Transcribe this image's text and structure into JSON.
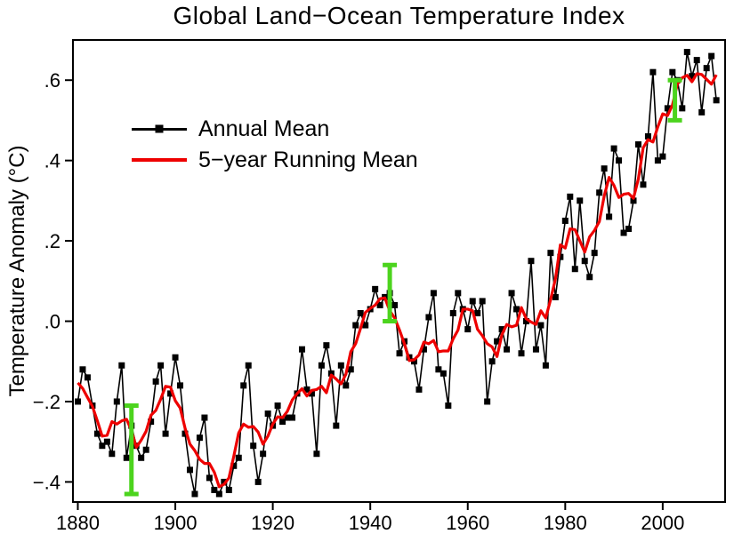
{
  "chart_data": {
    "type": "line",
    "title": "Global Land−Ocean Temperature Index",
    "xlabel": "",
    "ylabel": "Temperature Anomaly (°C)",
    "xlim": [
      1879,
      2012.8
    ],
    "ylim": [
      -0.45,
      0.7
    ],
    "grid": false,
    "legend_position": "upper-left-inside",
    "x_ticks": [
      {
        "value": 1880,
        "label": "1880"
      },
      {
        "value": 1900,
        "label": "1900"
      },
      {
        "value": 1920,
        "label": "1920"
      },
      {
        "value": 1940,
        "label": "1940"
      },
      {
        "value": 1960,
        "label": "1960"
      },
      {
        "value": 1980,
        "label": "1980"
      },
      {
        "value": 2000,
        "label": "2000"
      }
    ],
    "y_ticks": [
      {
        "value": -0.4,
        "label": "−.4"
      },
      {
        "value": -0.2,
        "label": "−.2"
      },
      {
        "value": 0.0,
        "label": ".0"
      },
      {
        "value": 0.2,
        "label": ".2"
      },
      {
        "value": 0.4,
        "label": ".4"
      },
      {
        "value": 0.6,
        "label": ".6"
      }
    ],
    "legend": [
      {
        "label": "Annual Mean",
        "color": "#000000",
        "marker": "square"
      },
      {
        "label": "5−year Running Mean",
        "color": "#ee0000",
        "marker": "none"
      }
    ],
    "colors": {
      "annual_mean": "#000000",
      "running_mean": "#ee0000",
      "uncertainty": "#4cd41e",
      "background": "#ffffff"
    },
    "series": {
      "annual": {
        "name": "Annual Mean",
        "years": [
          1880,
          1881,
          1882,
          1883,
          1884,
          1885,
          1886,
          1887,
          1888,
          1889,
          1890,
          1891,
          1892,
          1893,
          1894,
          1895,
          1896,
          1897,
          1898,
          1899,
          1900,
          1901,
          1902,
          1903,
          1904,
          1905,
          1906,
          1907,
          1908,
          1909,
          1910,
          1911,
          1912,
          1913,
          1914,
          1915,
          1916,
          1917,
          1918,
          1919,
          1920,
          1921,
          1922,
          1923,
          1924,
          1925,
          1926,
          1927,
          1928,
          1929,
          1930,
          1931,
          1932,
          1933,
          1934,
          1935,
          1936,
          1937,
          1938,
          1939,
          1940,
          1941,
          1942,
          1943,
          1944,
          1945,
          1946,
          1947,
          1948,
          1949,
          1950,
          1951,
          1952,
          1953,
          1954,
          1955,
          1956,
          1957,
          1958,
          1959,
          1960,
          1961,
          1962,
          1963,
          1964,
          1965,
          1966,
          1967,
          1968,
          1969,
          1970,
          1971,
          1972,
          1973,
          1974,
          1975,
          1976,
          1977,
          1978,
          1979,
          1980,
          1981,
          1982,
          1983,
          1984,
          1985,
          1986,
          1987,
          1988,
          1989,
          1990,
          1991,
          1992,
          1993,
          1994,
          1995,
          1996,
          1997,
          1998,
          1999,
          2000,
          2001,
          2002,
          2003,
          2004,
          2005,
          2006,
          2007,
          2008,
          2009,
          2010,
          2011
        ],
        "values": [
          -0.2,
          -0.12,
          -0.14,
          -0.21,
          -0.28,
          -0.31,
          -0.3,
          -0.33,
          -0.2,
          -0.11,
          -0.34,
          -0.26,
          -0.31,
          -0.34,
          -0.32,
          -0.25,
          -0.15,
          -0.11,
          -0.28,
          -0.18,
          -0.09,
          -0.16,
          -0.28,
          -0.37,
          -0.43,
          -0.29,
          -0.24,
          -0.39,
          -0.42,
          -0.43,
          -0.4,
          -0.42,
          -0.36,
          -0.34,
          -0.16,
          -0.11,
          -0.31,
          -0.4,
          -0.33,
          -0.23,
          -0.26,
          -0.21,
          -0.25,
          -0.24,
          -0.24,
          -0.18,
          -0.07,
          -0.17,
          -0.18,
          -0.33,
          -0.11,
          -0.06,
          -0.13,
          -0.26,
          -0.11,
          -0.16,
          -0.12,
          -0.01,
          0.02,
          -0.01,
          0.03,
          0.08,
          0.04,
          0.06,
          0.07,
          0.04,
          -0.08,
          -0.05,
          -0.09,
          -0.1,
          -0.17,
          -0.07,
          0.01,
          0.07,
          -0.12,
          -0.13,
          -0.21,
          0.02,
          0.07,
          0.03,
          -0.02,
          0.05,
          0.02,
          0.05,
          -0.2,
          -0.1,
          -0.05,
          -0.02,
          -0.07,
          0.07,
          0.03,
          -0.08,
          0.0,
          0.15,
          -0.07,
          -0.01,
          -0.11,
          0.17,
          0.06,
          0.16,
          0.25,
          0.31,
          0.13,
          0.3,
          0.15,
          0.11,
          0.17,
          0.32,
          0.38,
          0.26,
          0.43,
          0.4,
          0.22,
          0.23,
          0.3,
          0.44,
          0.34,
          0.46,
          0.62,
          0.4,
          0.41,
          0.53,
          0.62,
          0.6,
          0.53,
          0.67,
          0.61,
          0.65,
          0.52,
          0.63,
          0.66,
          0.55
        ]
      },
      "running_mean": {
        "name": "5−year Running Mean",
        "derived_from": "annual",
        "window_years": 5
      }
    },
    "uncertainty_bars": [
      {
        "x": 1891,
        "center": -0.32,
        "half_range": 0.11
      },
      {
        "x": 1944,
        "center": 0.07,
        "half_range": 0.07
      },
      {
        "x": 2002.5,
        "center": 0.55,
        "half_range": 0.05
      }
    ]
  }
}
